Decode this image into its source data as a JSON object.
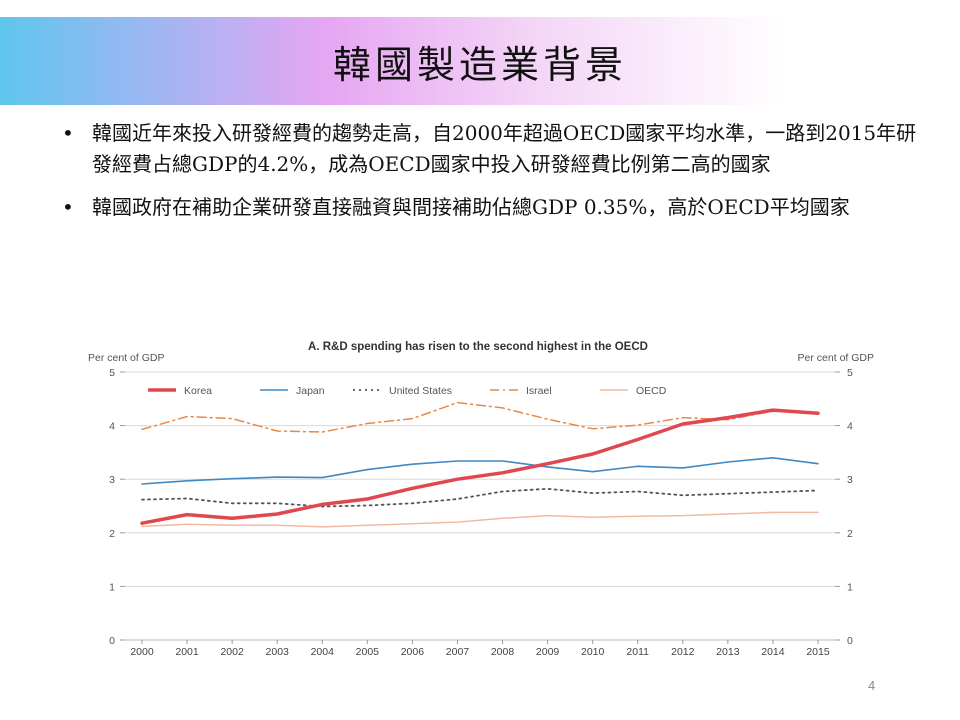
{
  "slide": {
    "title": "韓國製造業背景",
    "bullets": [
      "韓國近年來投入研發經費的趨勢走高，自2000年超過OECD國家平均水準，一路到2015年研發經費占總GDP的4.2%，成為OECD國家中投入研發經費比例第二高的國家",
      "韓國政府在補助企業研發直接融資與間接補助佔總GDP 0.35%，高於OECD平均國家"
    ],
    "page_number": "4"
  },
  "chart_data": {
    "type": "line",
    "title": "A. R&D spending has risen to the second highest in the OECD",
    "ylabel_left": "Per cent of GDP",
    "ylabel_right": "Per cent of GDP",
    "ylim": [
      0,
      5
    ],
    "yticks": [
      "0",
      "1",
      "2",
      "3",
      "4",
      "5"
    ],
    "x": [
      "2000",
      "2001",
      "2002",
      "2003",
      "2004",
      "2005",
      "2006",
      "2007",
      "2008",
      "2009",
      "2010",
      "2011",
      "2012",
      "2013",
      "2014",
      "2015"
    ],
    "grid": true,
    "legend_position": "top",
    "series": [
      {
        "name": "Korea",
        "color": "#e0484f",
        "style": "solid-thick",
        "values": [
          2.18,
          2.34,
          2.27,
          2.35,
          2.53,
          2.63,
          2.83,
          3.0,
          3.12,
          3.29,
          3.47,
          3.74,
          4.03,
          4.15,
          4.29,
          4.23
        ]
      },
      {
        "name": "Japan",
        "color": "#3f88c5",
        "style": "solid",
        "values": [
          2.91,
          2.97,
          3.01,
          3.04,
          3.03,
          3.18,
          3.28,
          3.34,
          3.34,
          3.23,
          3.14,
          3.24,
          3.21,
          3.32,
          3.4,
          3.29
        ]
      },
      {
        "name": "United States",
        "color": "#555555",
        "style": "dotted",
        "values": [
          2.62,
          2.64,
          2.55,
          2.55,
          2.49,
          2.51,
          2.55,
          2.63,
          2.77,
          2.82,
          2.74,
          2.77,
          2.7,
          2.73,
          2.76,
          2.79
        ]
      },
      {
        "name": "Israel",
        "color": "#e58a4a",
        "style": "dashdot",
        "values": [
          3.93,
          4.17,
          4.13,
          3.9,
          3.88,
          4.04,
          4.13,
          4.43,
          4.33,
          4.12,
          3.94,
          4.01,
          4.15,
          4.11,
          4.27,
          4.25
        ]
      },
      {
        "name": "OECD",
        "color": "#f2b99e",
        "style": "solid-thin",
        "values": [
          2.12,
          2.16,
          2.14,
          2.14,
          2.11,
          2.14,
          2.17,
          2.2,
          2.27,
          2.32,
          2.29,
          2.31,
          2.32,
          2.35,
          2.38,
          2.38
        ]
      }
    ]
  }
}
